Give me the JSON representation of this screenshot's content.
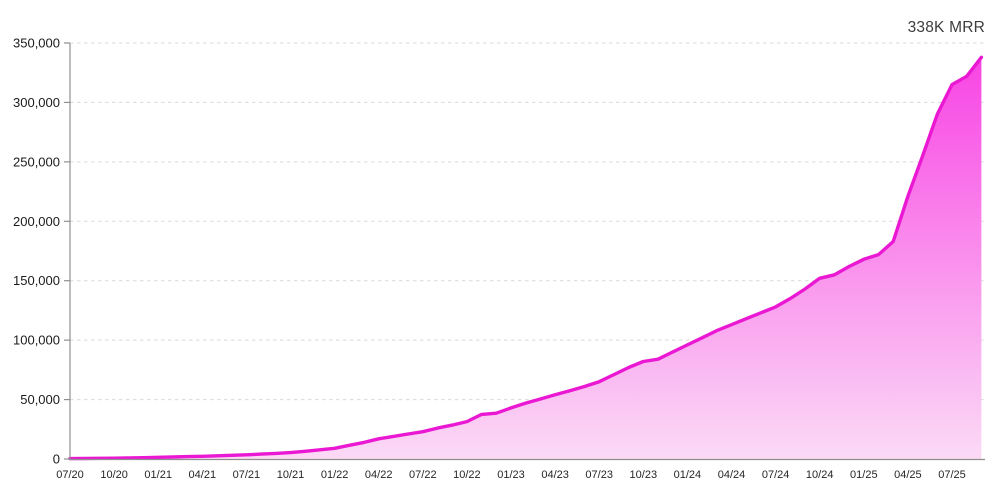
{
  "badge": {
    "label": "338K MRR"
  },
  "chart_data": {
    "type": "area",
    "title": "",
    "xlabel": "",
    "ylabel": "",
    "legend": "none",
    "grid": "horizontal dashed",
    "ylim": [
      0,
      350000
    ],
    "y_ticks": {
      "values": [
        0,
        50000,
        100000,
        150000,
        200000,
        250000,
        300000,
        350000
      ],
      "labels": [
        "0",
        "50,000",
        "100,000",
        "150,000",
        "200,000",
        "250,000",
        "300,000",
        "350,000"
      ]
    },
    "x_tick_labels": [
      "07/20",
      "10/20",
      "01/21",
      "04/21",
      "07/21",
      "10/21",
      "01/22",
      "04/22",
      "07/22",
      "10/22",
      "01/23",
      "04/23",
      "07/23",
      "10/23",
      "01/24",
      "04/24",
      "07/24",
      "10/24",
      "01/25",
      "04/25",
      "07/25"
    ],
    "series": [
      {
        "name": "MRR",
        "x": [
          "07/20",
          "08/20",
          "09/20",
          "10/20",
          "11/20",
          "12/20",
          "01/21",
          "02/21",
          "03/21",
          "04/21",
          "05/21",
          "06/21",
          "07/21",
          "08/21",
          "09/21",
          "10/21",
          "11/21",
          "12/21",
          "01/22",
          "02/22",
          "03/22",
          "04/22",
          "05/22",
          "06/22",
          "07/22",
          "08/22",
          "09/22",
          "10/22",
          "11/22",
          "12/22",
          "01/23",
          "02/23",
          "03/23",
          "04/23",
          "05/23",
          "06/23",
          "07/23",
          "08/23",
          "09/23",
          "10/23",
          "11/23",
          "12/23",
          "01/24",
          "02/24",
          "03/24",
          "04/24",
          "05/24",
          "06/24",
          "07/24",
          "08/24",
          "09/24",
          "10/24",
          "11/24",
          "12/24",
          "01/25",
          "02/25",
          "03/25",
          "04/25",
          "05/25",
          "06/25",
          "07/25",
          "08/25",
          "09/25"
        ],
        "values": [
          300,
          400,
          550,
          700,
          900,
          1100,
          1400,
          1700,
          2000,
          2300,
          2700,
          3100,
          3500,
          4100,
          4700,
          5400,
          6500,
          7700,
          9000,
          11500,
          14000,
          17000,
          19000,
          21000,
          23000,
          26000,
          28500,
          31500,
          37500,
          38500,
          43000,
          47000,
          50500,
          54000,
          57500,
          61000,
          65000,
          71000,
          77000,
          82000,
          84000,
          90000,
          96000,
          102000,
          108000,
          113000,
          118000,
          123000,
          128000,
          135000,
          143000,
          152000,
          155000,
          162000,
          168000,
          172000,
          183000,
          221000,
          255000,
          290000,
          315000,
          322000,
          338000
        ]
      }
    ],
    "annotations": [
      {
        "text": "338K MRR",
        "position": "top-right"
      }
    ],
    "colors": {
      "line": "#EA18D2",
      "area_top": "#F83FE3",
      "area_bottom": "#FBDAF6",
      "grid": "#D9D9D9",
      "axis": "#8F8F8F",
      "y_tick_text": "#1B1B1B",
      "x_tick_text": "#262626",
      "badge_text": "#3D3D3D"
    }
  }
}
